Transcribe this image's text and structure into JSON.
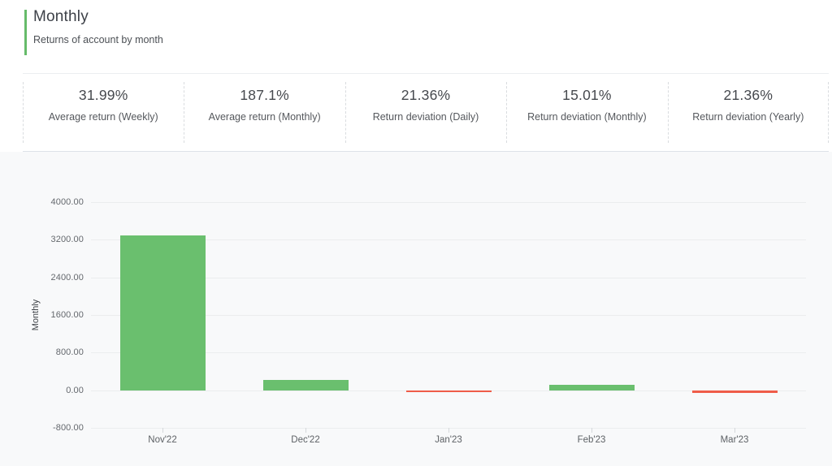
{
  "header": {
    "title": "Monthly",
    "subtitle": "Returns of account by month"
  },
  "stats": [
    {
      "value": "31.99%",
      "label": "Average return (Weekly)"
    },
    {
      "value": "187.1%",
      "label": "Average return (Monthly)"
    },
    {
      "value": "21.36%",
      "label": "Return deviation (Daily)"
    },
    {
      "value": "15.01%",
      "label": "Return deviation (Monthly)"
    },
    {
      "value": "21.36%",
      "label": "Return deviation (Yearly)"
    }
  ],
  "chart_data": {
    "type": "bar",
    "title": "Monthly",
    "ylabel": "Monthly",
    "xlabel": "",
    "categories": [
      "Nov'22",
      "Dec'22",
      "Jan'23",
      "Feb'23",
      "Mar'23"
    ],
    "values": [
      3290,
      210,
      -40,
      120,
      -50
    ],
    "ylim": [
      -800,
      4000
    ],
    "ytick_values": [
      4000,
      3200,
      2400,
      1600,
      800,
      0,
      -800
    ],
    "ytick_labels": [
      "4000.00",
      "3200.00",
      "2400.00",
      "1600.00",
      "800.00",
      "0.00",
      "-800.00"
    ],
    "grid": true,
    "legend": "none",
    "colors": {
      "positive": "#6abf6e",
      "negative": "#ef5c49"
    }
  },
  "theme": {
    "accent_green": "#66bb6a",
    "chart_background": "#f8f9fa"
  }
}
